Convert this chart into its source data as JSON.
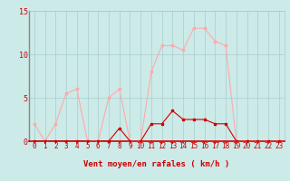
{
  "x": [
    0,
    1,
    2,
    3,
    4,
    5,
    6,
    7,
    8,
    9,
    10,
    11,
    12,
    13,
    14,
    15,
    16,
    17,
    18,
    19,
    20,
    21,
    22,
    23
  ],
  "rafales": [
    2,
    0,
    2,
    5.5,
    6,
    0,
    0,
    5,
    6,
    0,
    0,
    8,
    11,
    11,
    10.5,
    13,
    13,
    11.5,
    11,
    0,
    0,
    0,
    0,
    0
  ],
  "moyen": [
    0,
    0,
    0,
    0,
    0,
    0,
    0,
    0,
    1.5,
    0,
    0,
    2,
    2,
    3.5,
    2.5,
    2.5,
    2.5,
    2,
    2,
    0,
    0,
    0,
    0,
    0
  ],
  "color_rafales": "#ffaaaa",
  "color_moyen": "#cc0000",
  "bg_color": "#cceae8",
  "grid_color": "#aacccc",
  "xlabel": "Vent moyen/en rafales ( km/h )",
  "ylim": [
    0,
    15
  ],
  "yticks": [
    0,
    5,
    10,
    15
  ],
  "xlim": [
    -0.5,
    23.5
  ],
  "tick_fontsize": 5.5,
  "xlabel_fontsize": 6.5
}
